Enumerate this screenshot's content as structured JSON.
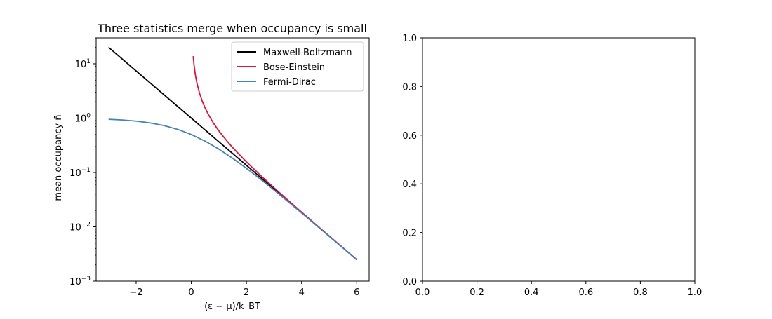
{
  "chart_data": [
    {
      "type": "line",
      "title": "Three statistics merge when occupancy is small",
      "xlabel": "(ε − μ)/k_BT",
      "ylabel": "mean occupancy n̄",
      "xlim": [
        -3.45,
        6.45
      ],
      "ylim": [
        0.001,
        30
      ],
      "yscale": "log",
      "xticks": [
        -2,
        0,
        2,
        4,
        6
      ],
      "xtick_labels": [
        "−2",
        "0",
        "2",
        "4",
        "6"
      ],
      "yticks": [
        0.001,
        0.01,
        0.1,
        1,
        10
      ],
      "ytick_labels": [
        {
          "base": "10",
          "exp": "−3"
        },
        {
          "base": "10",
          "exp": "−2"
        },
        {
          "base": "10",
          "exp": "−1"
        },
        {
          "base": "10",
          "exp": "0"
        },
        {
          "base": "10",
          "exp": "1"
        }
      ],
      "reference_line": {
        "y": 1,
        "style": "dotted",
        "color": "#808080"
      },
      "legend_position": "top-right",
      "series": [
        {
          "name": "Maxwell-Boltzmann",
          "color": "#000000",
          "x": [
            -3.0,
            -2.5,
            -2.0,
            -1.5,
            -1.0,
            -0.5,
            0.0,
            0.5,
            1.0,
            1.5,
            2.0,
            2.5,
            3.0,
            3.5,
            4.0,
            4.5,
            5.0,
            5.5,
            6.0
          ],
          "y": [
            20.09,
            12.18,
            7.389,
            4.482,
            2.718,
            1.649,
            1.0,
            0.6065,
            0.3679,
            0.2231,
            0.1353,
            0.08208,
            0.04979,
            0.0302,
            0.01832,
            0.01111,
            0.006738,
            0.004087,
            0.002479
          ]
        },
        {
          "name": "Bose-Einstein",
          "color": "#dc143c",
          "x": [
            0.07,
            0.1,
            0.15,
            0.2,
            0.3,
            0.4,
            0.5,
            0.6,
            0.8,
            1.0,
            1.25,
            1.5,
            2.0,
            2.5,
            3.0,
            3.5,
            4.0,
            4.5,
            5.0,
            5.5,
            6.0
          ],
          "y": [
            13.8,
            9.508,
            6.187,
            4.517,
            2.858,
            2.033,
            1.542,
            1.216,
            0.8133,
            0.582,
            0.4032,
            0.2872,
            0.1565,
            0.08942,
            0.0524,
            0.03114,
            0.01866,
            0.01124,
            0.006784,
            0.004104,
            0.002485
          ]
        },
        {
          "name": "Fermi-Dirac",
          "color": "#4682b4",
          "x": [
            -3.0,
            -2.5,
            -2.0,
            -1.5,
            -1.0,
            -0.5,
            0.0,
            0.5,
            1.0,
            1.5,
            2.0,
            2.5,
            3.0,
            3.5,
            4.0,
            4.5,
            5.0,
            5.5,
            6.0
          ],
          "y": [
            0.9526,
            0.9241,
            0.8808,
            0.8176,
            0.7311,
            0.6225,
            0.5,
            0.3775,
            0.2689,
            0.1824,
            0.1192,
            0.07586,
            0.04743,
            0.02931,
            0.01799,
            0.01099,
            0.006693,
            0.00407,
            0.002473
          ]
        }
      ]
    },
    {
      "type": "empty",
      "xlim": [
        0,
        1
      ],
      "ylim": [
        0,
        1
      ],
      "xticks": [
        0,
        0.2,
        0.4,
        0.6,
        0.8,
        1.0
      ],
      "xtick_labels": [
        "0.0",
        "0.2",
        "0.4",
        "0.6",
        "0.8",
        "1.0"
      ],
      "yticks": [
        0,
        0.2,
        0.4,
        0.6,
        0.8,
        1.0
      ],
      "ytick_labels": [
        "0.0",
        "0.2",
        "0.4",
        "0.6",
        "0.8",
        "1.0"
      ]
    }
  ]
}
